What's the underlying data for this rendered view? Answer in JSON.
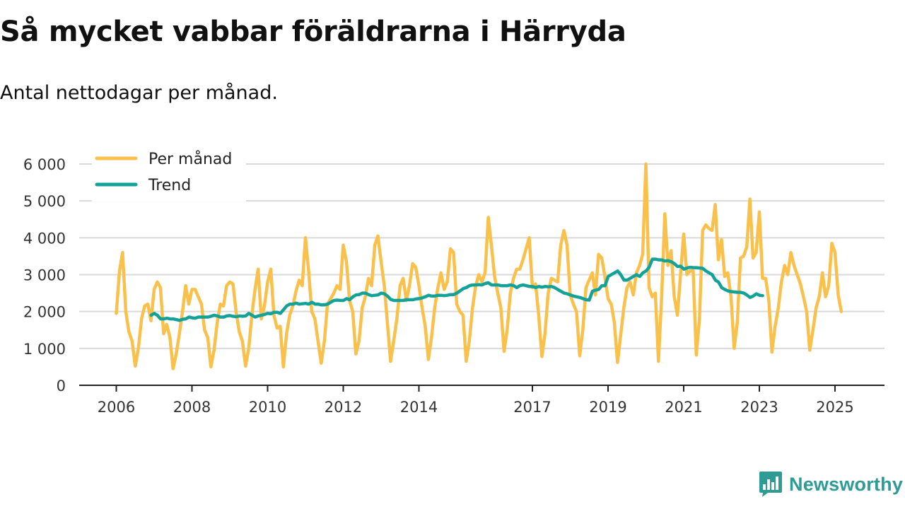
{
  "header": {
    "title": "Så mycket vabbar föräldrarna i Härryda",
    "subtitle": "Antal nettodagar per månad."
  },
  "brand": {
    "name": "Newsworthy",
    "color": "#2e9b95"
  },
  "chart_data": {
    "type": "line",
    "title": "Så mycket vabbar föräldrarna i Härryda",
    "subtitle": "Antal nettodagar per månad.",
    "xlabel": "",
    "ylabel": "",
    "ylim": [
      0,
      6000
    ],
    "y_ticks": [
      {
        "value": 0,
        "label": "0"
      },
      {
        "value": 1000,
        "label": "1 000"
      },
      {
        "value": 2000,
        "label": "2 000"
      },
      {
        "value": 3000,
        "label": "3 000"
      },
      {
        "value": 4000,
        "label": "4 000"
      },
      {
        "value": 5000,
        "label": "5 000"
      },
      {
        "value": 6000,
        "label": "6 000"
      }
    ],
    "xlim": [
      2006.0,
      2025.58
    ],
    "x_ticks": [
      {
        "value": 2006,
        "label": "2006"
      },
      {
        "value": 2008,
        "label": "2008"
      },
      {
        "value": 2010,
        "label": "2010"
      },
      {
        "value": 2012,
        "label": "2012"
      },
      {
        "value": 2014,
        "label": "2014"
      },
      {
        "value": 2017,
        "label": "2017"
      },
      {
        "value": 2019,
        "label": "2019"
      },
      {
        "value": 2021,
        "label": "2021"
      },
      {
        "value": 2023,
        "label": "2023"
      },
      {
        "value": 2025,
        "label": "2025"
      }
    ],
    "grid": true,
    "legend_position": "top-left",
    "series": [
      {
        "name": "Per månad",
        "color": "#f9c14c",
        "start": 2006.0,
        "values": [
          1950,
          3100,
          3600,
          2000,
          1450,
          1200,
          520,
          1000,
          1800,
          2150,
          2200,
          1750,
          2600,
          2800,
          2650,
          1400,
          1650,
          1300,
          450,
          850,
          1400,
          2000,
          2700,
          2200,
          2600,
          2600,
          2400,
          2200,
          1500,
          1300,
          500,
          950,
          1700,
          2200,
          2150,
          2700,
          2800,
          2750,
          2000,
          1450,
          1200,
          520,
          1000,
          1900,
          2600,
          3150,
          1800,
          2150,
          2800,
          3150,
          1900,
          1550,
          1600,
          500,
          1400,
          1900,
          2150,
          2550,
          2850,
          2700,
          4000,
          3100,
          2000,
          1800,
          1200,
          600,
          1200,
          2200,
          2350,
          2500,
          2700,
          2600,
          3800,
          3350,
          2300,
          2000,
          850,
          1200,
          2100,
          2400,
          2900,
          2700,
          3800,
          4050,
          3350,
          2700,
          1700,
          650,
          1200,
          1800,
          2700,
          2900,
          2300,
          2700,
          3300,
          3200,
          2700,
          2100,
          1600,
          700,
          1300,
          2100,
          2650,
          3050,
          2600,
          2800,
          3700,
          3600,
          2200,
          2000,
          1900,
          650,
          1200,
          2100,
          2700,
          3000,
          2800,
          3050,
          4550,
          3800,
          2950,
          2500,
          2100,
          920,
          1500,
          2500,
          2900,
          3150,
          3150,
          3400,
          3700,
          4000,
          2650,
          2750,
          1900,
          780,
          1400,
          2500,
          2900,
          2850,
          2800,
          3800,
          4200,
          3800,
          2450,
          2200,
          2000,
          800,
          1500,
          2650,
          2850,
          3050,
          2450,
          3550,
          3450,
          2950,
          2350,
          2200,
          1700,
          620,
          1350,
          2100,
          2650,
          2800,
          2450,
          3050,
          3250,
          3550,
          6000,
          2650,
          2400,
          2500,
          650,
          2400,
          4650,
          3250,
          3650,
          2400,
          1900,
          3000,
          4100,
          3000,
          3100,
          3100,
          820,
          1800,
          4200,
          4350,
          4250,
          4200,
          4900,
          3400,
          3950,
          2950,
          3050,
          2400,
          1000,
          1700,
          3450,
          3500,
          3750,
          5050,
          3450,
          3600,
          4700,
          2900,
          2900,
          2300,
          900,
          1600,
          2100,
          2800,
          3250,
          3000,
          3600,
          3250,
          3000,
          2750,
          2400,
          2000,
          950,
          1500,
          2100,
          2400,
          3050,
          2400,
          2700,
          3850,
          3600,
          2450,
          2000
        ]
      },
      {
        "name": "Trend",
        "color": "#14a198",
        "start": 2006.92,
        "values": [
          1900,
          1950,
          1900,
          1800,
          1800,
          1820,
          1800,
          1800,
          1780,
          1760,
          1790,
          1800,
          1850,
          1830,
          1820,
          1850,
          1850,
          1850,
          1850,
          1870,
          1900,
          1880,
          1850,
          1850,
          1880,
          1890,
          1870,
          1860,
          1880,
          1870,
          1880,
          1950,
          1900,
          1850,
          1880,
          1900,
          1920,
          1950,
          1940,
          1980,
          1980,
          1950,
          2050,
          2150,
          2200,
          2200,
          2230,
          2200,
          2210,
          2220,
          2200,
          2250,
          2200,
          2200,
          2180,
          2180,
          2200,
          2250,
          2300,
          2310,
          2300,
          2300,
          2350,
          2320,
          2400,
          2450,
          2460,
          2500,
          2500,
          2460,
          2430,
          2440,
          2450,
          2500,
          2480,
          2420,
          2330,
          2300,
          2300,
          2300,
          2300,
          2320,
          2320,
          2320,
          2340,
          2350,
          2370,
          2400,
          2440,
          2420,
          2420,
          2440,
          2440,
          2430,
          2440,
          2460,
          2460,
          2500,
          2560,
          2620,
          2650,
          2700,
          2720,
          2720,
          2730,
          2720,
          2760,
          2780,
          2720,
          2720,
          2720,
          2700,
          2700,
          2700,
          2720,
          2700,
          2650,
          2700,
          2720,
          2700,
          2680,
          2680,
          2650,
          2680,
          2660,
          2680,
          2670,
          2680,
          2650,
          2600,
          2550,
          2500,
          2480,
          2450,
          2420,
          2400,
          2380,
          2350,
          2320,
          2310,
          2550,
          2580,
          2600,
          2700,
          2700,
          2950,
          3000,
          3050,
          3100,
          3000,
          2850,
          2850,
          2900,
          2950,
          3000,
          2950,
          3050,
          3100,
          3200,
          3420,
          3420,
          3400,
          3400,
          3370,
          3380,
          3350,
          3300,
          3220,
          3230,
          3150,
          3180,
          3200,
          3190,
          3190,
          3180,
          3170,
          3100,
          3050,
          3000,
          2850,
          2800,
          2650,
          2600,
          2560,
          2540,
          2530,
          2520,
          2520,
          2500,
          2450,
          2380,
          2420,
          2480,
          2440,
          2430
        ]
      }
    ]
  }
}
